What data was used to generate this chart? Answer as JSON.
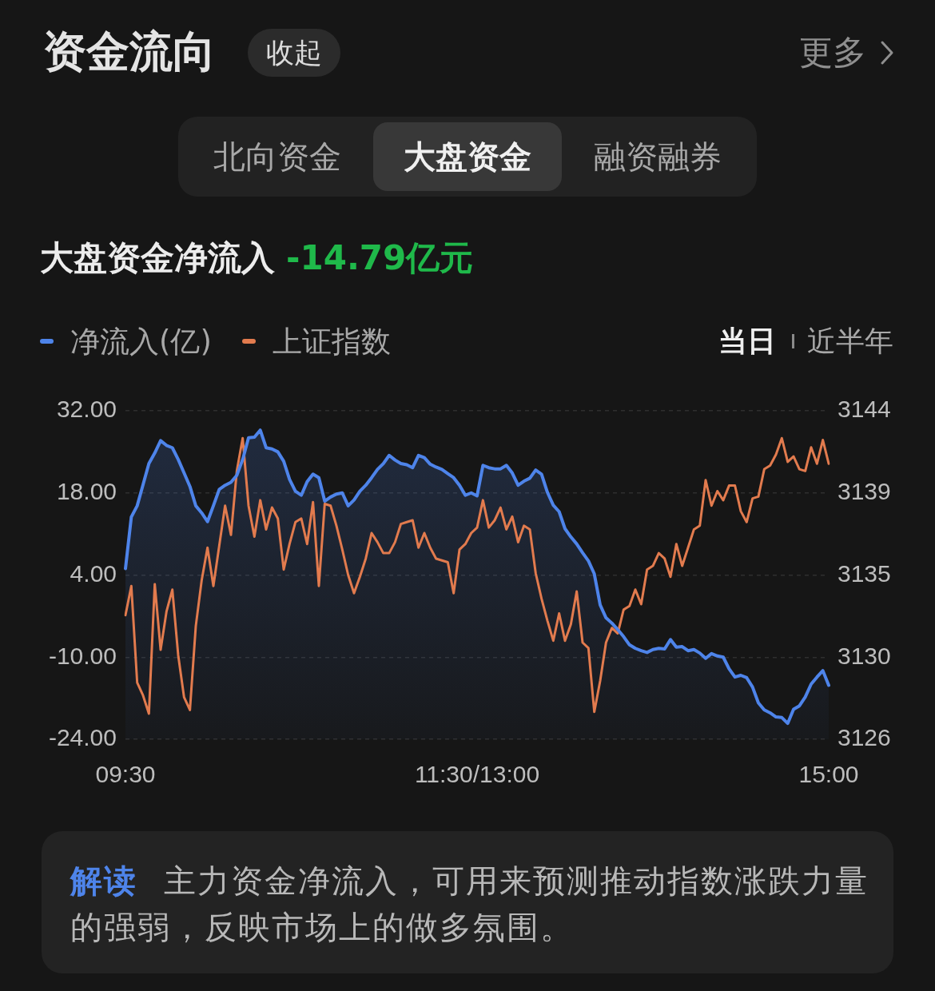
{
  "chart_data": {
    "type": "line",
    "title": "资金流向",
    "subtitle": "大盘资金净流入",
    "annotations": [
      "收起",
      "更多",
      "北向资金",
      "大盘资金",
      "融资融券",
      "-14.79亿元",
      "当日",
      "近半年",
      "解读",
      "主力资金净流入，可用来预测推动指数涨跌力量的强弱，反映市场上的做多氛围。"
    ],
    "categories": [
      "09:30",
      null,
      null,
      null,
      null,
      null,
      null,
      null,
      null,
      null,
      null,
      null,
      null,
      null,
      null,
      null,
      null,
      null,
      null,
      null,
      null,
      null,
      null,
      null,
      null,
      null,
      null,
      null,
      null,
      null,
      null,
      null,
      null,
      null,
      null,
      null,
      null,
      null,
      null,
      null,
      null,
      null,
      null,
      null,
      null,
      null,
      null,
      null,
      null,
      null,
      null,
      null,
      null,
      null,
      null,
      null,
      null,
      null,
      null,
      null,
      "11:30/13:00",
      null,
      null,
      null,
      null,
      null,
      null,
      null,
      null,
      null,
      null,
      null,
      null,
      null,
      null,
      null,
      null,
      null,
      null,
      null,
      null,
      null,
      null,
      null,
      null,
      null,
      null,
      null,
      null,
      null,
      null,
      null,
      null,
      null,
      null,
      null,
      null,
      null,
      null,
      null,
      null,
      null,
      null,
      null,
      null,
      null,
      null,
      null,
      null,
      null,
      null,
      null,
      null,
      null,
      null,
      null,
      null,
      null,
      null,
      null,
      "15:00"
    ],
    "ylim": [
      -24,
      32
    ],
    "yticks": [
      {
        "value": 32,
        "label": "32.00"
      },
      {
        "value": 18,
        "label": "18.00"
      },
      {
        "value": 4,
        "label": "4.00"
      },
      {
        "value": -10,
        "label": "-10.00"
      },
      {
        "value": -24,
        "label": "-24.00"
      }
    ],
    "y2lim": [
      3126,
      3144
    ],
    "y2ticks": [
      3144,
      {
        "value": 3139.5,
        "label": "3139"
      },
      3135,
      {
        "value": 3130.5,
        "label": "3130"
      },
      3126
    ],
    "grid": "y",
    "legend": "top left",
    "series": [
      {
        "name": "净流入(亿)",
        "type": "line",
        "color": "#4e84ea",
        "values": [
          5.1,
          13.9,
          15.8,
          19.4,
          23.0,
          24.8,
          26.9,
          26.1,
          25.7,
          23.7,
          21.4,
          19.1,
          15.8,
          14.6,
          13.1,
          15.8,
          18.6,
          19.3,
          19.8,
          21.0,
          23.7,
          27.4,
          27.5,
          28.7,
          25.7,
          25.5,
          25.0,
          23.4,
          20.3,
          18.3,
          17.6,
          19.9,
          21.2,
          20.6,
          16.6,
          17.3,
          17.8,
          18.0,
          15.8,
          16.8,
          18.3,
          19.3,
          20.6,
          22.0,
          23.0,
          24.4,
          23.6,
          23.0,
          22.8,
          22.3,
          24.4,
          24.0,
          22.9,
          22.4,
          22.0,
          21.3,
          20.6,
          19.3,
          17.6,
          18.0,
          17.5,
          22.7,
          22.3,
          22.1,
          22.1,
          22.7,
          21.4,
          19.3,
          20.0,
          20.5,
          21.9,
          21.2,
          18.1,
          15.9,
          14.8,
          11.9,
          10.5,
          9.3,
          7.8,
          6.4,
          4.2,
          -1.1,
          -3.3,
          -4.2,
          -5.3,
          -6.5,
          -7.9,
          -8.5,
          -8.9,
          -9.2,
          -8.7,
          -8.5,
          -8.6,
          -7.0,
          -8.3,
          -8.2,
          -8.9,
          -8.7,
          -9.3,
          -10.2,
          -9.4,
          -9.8,
          -10.0,
          -12.0,
          -13.4,
          -13.1,
          -13.5,
          -15.1,
          -17.8,
          -19.0,
          -19.5,
          -20.2,
          -20.3,
          -21.3,
          -18.9,
          -18.3,
          -16.8,
          -14.6,
          -13.4,
          -12.3,
          -14.8
        ],
        "lower": [
          -24,
          -24,
          -24,
          -24,
          -24,
          -24,
          -24,
          -24,
          -24,
          -24,
          -24,
          -24,
          -24,
          -24,
          -24,
          -24,
          -24,
          -24,
          -24,
          -24,
          -24,
          -24,
          -24,
          -24,
          -24,
          -24,
          -24,
          -24,
          -24,
          -24,
          -24,
          -24,
          -24,
          -24,
          -24,
          -24,
          -24,
          -24,
          -24,
          -24,
          -24,
          -24,
          -24,
          -24,
          -24,
          -24,
          -24,
          -24,
          -24,
          -24,
          -24,
          -24,
          -24,
          -24,
          -24,
          -24,
          -24,
          -24,
          -24,
          -24,
          -24,
          -24,
          -24,
          -24,
          -24,
          -24,
          -24,
          -24,
          -24,
          -24,
          -24,
          -24,
          -24,
          -24,
          -24,
          -24,
          -24,
          -24,
          -24,
          -24,
          -24,
          -24,
          -24,
          -24,
          -24,
          -24,
          -24,
          -24,
          -24,
          -24,
          -24,
          -24,
          -24,
          -24,
          -24,
          -24,
          -24,
          -24,
          -24,
          -24,
          -24,
          -24,
          -24,
          -24,
          -24,
          -24,
          -24,
          -24,
          -24,
          -24,
          -24,
          -24,
          -24,
          -24,
          -24,
          -24,
          -24,
          -24,
          -24,
          -24,
          -24
        ],
        "upper": [
          5.1,
          13.9,
          15.8,
          19.4,
          23.0,
          24.8,
          26.9,
          26.1,
          25.7,
          23.7,
          21.4,
          19.1,
          15.8,
          14.6,
          13.1,
          15.8,
          18.6,
          19.3,
          19.8,
          21.0,
          23.7,
          27.4,
          27.5,
          28.7,
          25.7,
          25.5,
          25.0,
          23.4,
          20.3,
          18.3,
          17.6,
          19.9,
          21.2,
          20.6,
          16.6,
          17.3,
          17.8,
          18.0,
          15.8,
          16.8,
          18.3,
          19.3,
          20.6,
          22.0,
          23.0,
          24.4,
          23.6,
          23.0,
          22.8,
          22.3,
          24.4,
          24.0,
          22.9,
          22.4,
          22.0,
          21.3,
          20.6,
          19.3,
          17.6,
          18.0,
          17.5,
          22.7,
          22.3,
          22.1,
          22.1,
          22.7,
          21.4,
          19.3,
          20.0,
          20.5,
          21.9,
          21.2,
          18.1,
          15.9,
          14.8,
          11.9,
          10.5,
          9.3,
          7.8,
          6.4,
          4.2,
          -1.1,
          -3.3,
          -4.2,
          -5.3,
          -6.5,
          -7.9,
          -8.5,
          -8.9,
          -9.2,
          -8.7,
          -8.5,
          -8.6,
          -7.0,
          -8.3,
          -8.2,
          -8.9,
          -8.7,
          -9.3,
          -10.2,
          -9.4,
          -9.8,
          -10.0,
          -12.0,
          -13.4,
          -13.1,
          -13.5,
          -15.1,
          -17.8,
          -19.0,
          -19.5,
          -20.2,
          -20.3,
          -21.3,
          -18.9,
          -18.3,
          -16.8,
          -14.6,
          -13.4,
          -12.3,
          -14.8
        ]
      },
      {
        "name": "上证指数",
        "type": "line",
        "axis": "y2",
        "color": "#e27b4e",
        "values": [
          3132.8,
          3134.4,
          3129.1,
          3128.4,
          3127.4,
          3134.5,
          3130.9,
          3133.0,
          3134.2,
          3130.6,
          3128.3,
          3127.6,
          3132.2,
          3134.7,
          3136.5,
          3134.4,
          3136.6,
          3138.8,
          3137.2,
          3140.7,
          3142.5,
          3138.8,
          3137.1,
          3139.1,
          3137.5,
          3138.7,
          3138.1,
          3135.3,
          3136.7,
          3137.9,
          3138.1,
          3136.7,
          3139.0,
          3134.4,
          3138.9,
          3138.8,
          3137.7,
          3136.4,
          3135.0,
          3134.0,
          3134.9,
          3135.9,
          3137.3,
          3136.8,
          3136.2,
          3136.2,
          3136.8,
          3137.8,
          3137.9,
          3138.0,
          3136.5,
          3137.3,
          3136.5,
          3135.9,
          3135.8,
          3135.7,
          3134.0,
          3136.4,
          3136.7,
          3137.3,
          3137.6,
          3139.1,
          3137.6,
          3138.0,
          3138.7,
          3137.5,
          3138.2,
          3136.8,
          3137.7,
          3137.5,
          3135.1,
          3133.7,
          3132.5,
          3131.4,
          3132.9,
          3131.4,
          3132.3,
          3134.1,
          3131.3,
          3131.0,
          3127.5,
          3129.2,
          3131.3,
          3132.1,
          3131.8,
          3133.1,
          3133.3,
          3134.2,
          3133.4,
          3135.3,
          3135.5,
          3136.2,
          3135.9,
          3134.9,
          3136.7,
          3135.5,
          3136.5,
          3137.5,
          3137.7,
          3140.2,
          3138.8,
          3139.6,
          3139.1,
          3139.9,
          3139.9,
          3138.5,
          3137.9,
          3139.2,
          3139.3,
          3140.8,
          3141.0,
          3141.6,
          3142.5,
          3141.2,
          3141.5,
          3140.8,
          3140.7,
          3142.0,
          3141.1,
          3142.4,
          3141.1
        ]
      }
    ]
  }
}
